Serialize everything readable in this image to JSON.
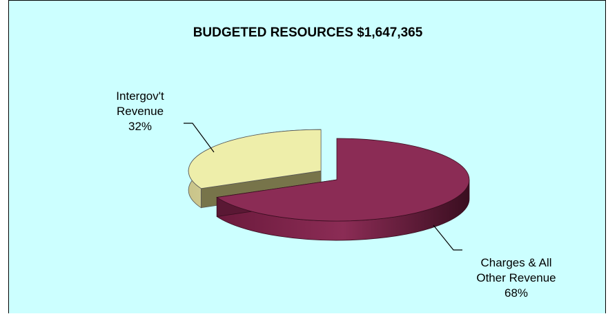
{
  "chart_data": {
    "type": "pie",
    "title": "BUDGETED RESOURCES $1,647,365",
    "slices": [
      {
        "label_lines": [
          "Intergov't",
          "Revenue"
        ],
        "percent_label": "32%",
        "value": 32,
        "color": "#eeeeaa"
      },
      {
        "label_lines": [
          "Charges & All",
          "Other Revenue"
        ],
        "percent_label": "68%",
        "value": 68,
        "color": "#8b2c55"
      }
    ],
    "style": "3d-exploded",
    "background": "#ccffff"
  }
}
